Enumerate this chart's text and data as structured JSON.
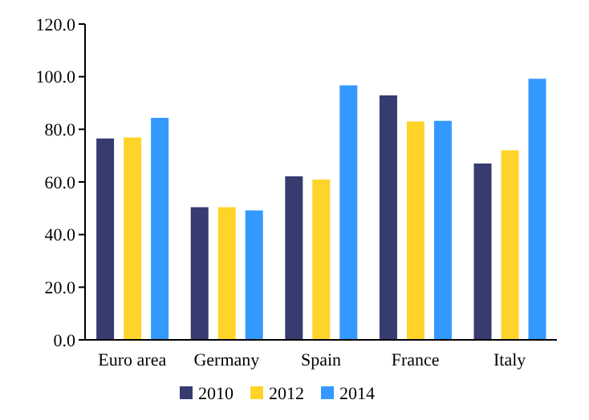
{
  "chart_data": {
    "type": "bar",
    "categories": [
      "Euro area",
      "Germany",
      "Spain",
      "France",
      "Italy"
    ],
    "series": [
      {
        "name": "2010",
        "color": "#363b70",
        "values": [
          76.5,
          50.4,
          62.1,
          92.9,
          67.0
        ]
      },
      {
        "name": "2012",
        "color": "#ffd42a",
        "values": [
          76.9,
          50.4,
          60.9,
          83.0,
          72.0
        ]
      },
      {
        "name": "2014",
        "color": "#3399ff",
        "values": [
          84.4,
          49.2,
          96.7,
          83.2,
          99.2
        ]
      }
    ],
    "ylim": [
      0,
      120
    ],
    "yticks": [
      {
        "value": 0,
        "label": "0.0"
      },
      {
        "value": 20,
        "label": "20.0"
      },
      {
        "value": 40,
        "label": "40.0"
      },
      {
        "value": 60,
        "label": "60.0"
      },
      {
        "value": 80,
        "label": "80.0"
      },
      {
        "value": 100,
        "label": "100.0"
      },
      {
        "value": 120,
        "label": "120.0"
      }
    ],
    "grid": false,
    "legend": "bottom"
  }
}
